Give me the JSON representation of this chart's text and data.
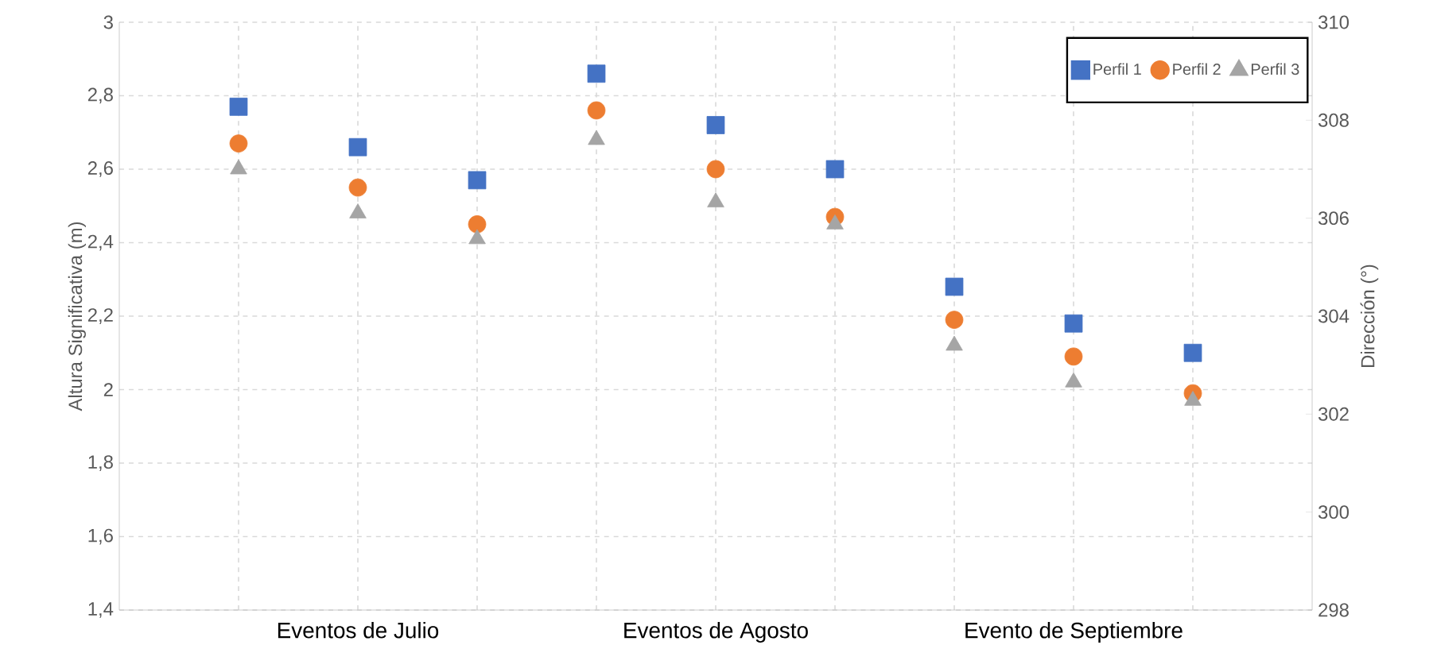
{
  "chart_data": {
    "type": "scatter",
    "categories": [
      null,
      "Eventos de Julio",
      null,
      null,
      "Eventos de Agosto",
      null,
      null,
      "Evento de Septiembre",
      null
    ],
    "ylabel": "Altura Significativa (m)",
    "y2label": "Dirección (°)",
    "ylim": [
      1.4,
      3
    ],
    "yticks": [
      {
        "value": 1.4,
        "label": "1,4"
      },
      {
        "value": 1.6,
        "label": "1,6"
      },
      {
        "value": 1.8,
        "label": "1,8"
      },
      {
        "value": 2,
        "label": "2"
      },
      {
        "value": 2.2,
        "label": "2,2"
      },
      {
        "value": 2.4,
        "label": "2,4"
      },
      {
        "value": 2.6,
        "label": "2,6"
      },
      {
        "value": 2.8,
        "label": "2,8"
      },
      {
        "value": 3,
        "label": "3"
      }
    ],
    "y2lim": [
      298,
      310
    ],
    "y2ticks": [
      298,
      300,
      302,
      304,
      306,
      308,
      310
    ],
    "grid": true,
    "legend": "top right",
    "series": [
      {
        "name": "Perfil 1",
        "color": "#4472c4",
        "marker": "square",
        "values": [
          2.77,
          2.66,
          2.57,
          2.86,
          2.72,
          2.6,
          2.28,
          2.18,
          2.1
        ]
      },
      {
        "name": "Perfil 2",
        "color": "#ed7d31",
        "marker": "circle",
        "values": [
          2.67,
          2.55,
          2.45,
          2.76,
          2.6,
          2.47,
          2.19,
          2.09,
          1.99
        ]
      },
      {
        "name": "Perfil 3",
        "color": "#a5a5a5",
        "marker": "triangle",
        "values": [
          2.6,
          2.48,
          2.41,
          2.68,
          2.51,
          2.45,
          2.12,
          2.02,
          1.97
        ]
      }
    ]
  }
}
